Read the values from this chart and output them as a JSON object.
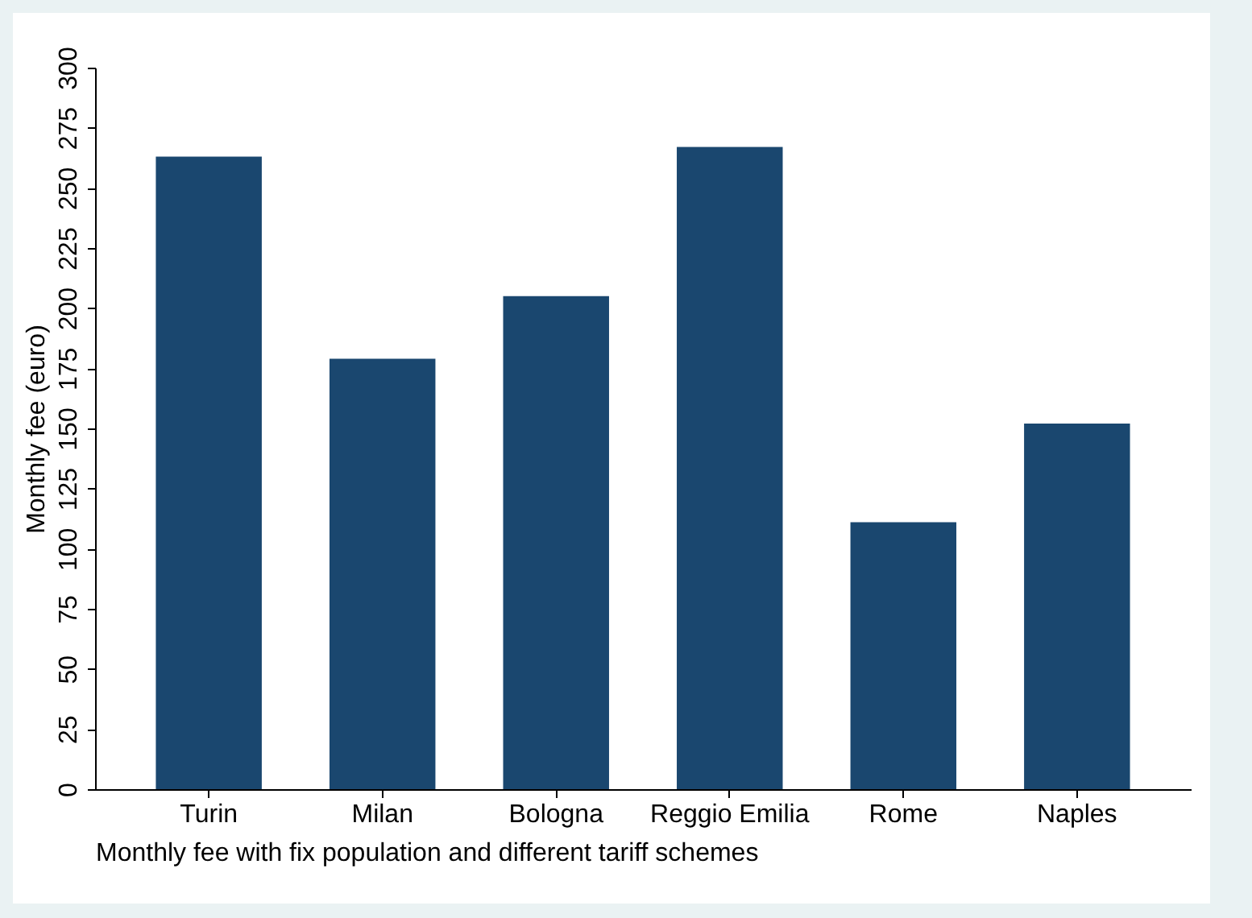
{
  "chart_data": {
    "type": "bar",
    "xlabel": "Monthly fee with fix population and different tariff schemes",
    "ylabel": "Monthly fee (euro)",
    "categories": [
      "Turin",
      "Milan",
      "Bologna",
      "Reggio Emilia",
      "Rome",
      "Naples"
    ],
    "values": [
      263,
      179,
      205,
      267,
      111,
      152
    ],
    "color": "#1a476f",
    "ylim": [
      0,
      300
    ],
    "yticks": [
      0,
      25,
      50,
      75,
      100,
      125,
      150,
      175,
      200,
      225,
      250,
      275,
      300
    ],
    "grid": false
  }
}
